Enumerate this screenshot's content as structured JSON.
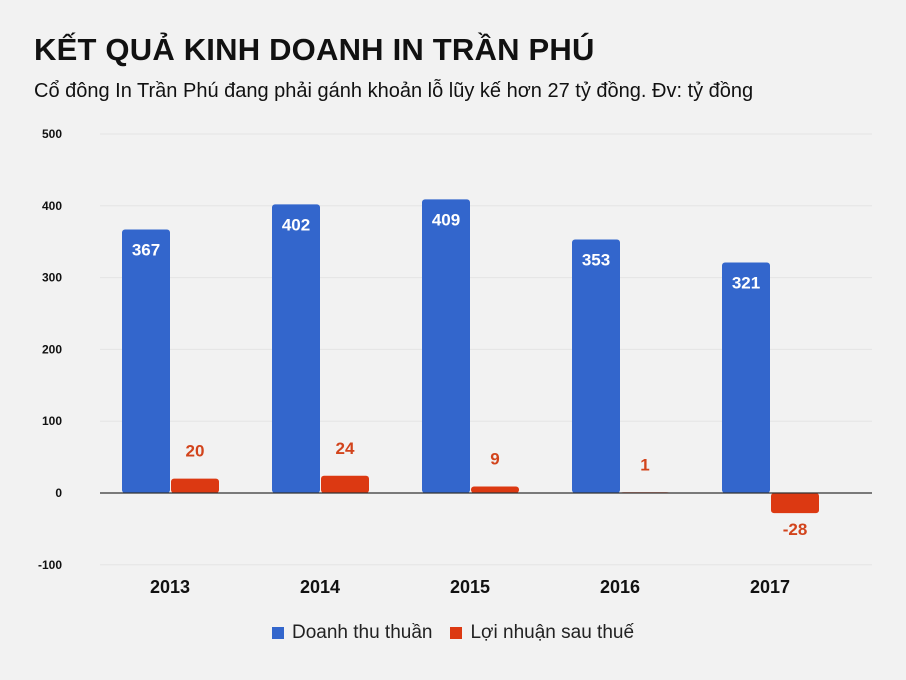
{
  "title": "KẾT QUẢ KINH DOANH IN TRẦN PHÚ",
  "subtitle": "Cổ đông In Trần Phú đang phải gánh khoản lỗ lũy kế hơn 27 tỷ đồng. Đv: tỷ đồng",
  "chart_data": {
    "type": "bar",
    "title": "KẾT QUẢ KINH DOANH IN TRẦN PHÚ",
    "categories": [
      "2013",
      "2014",
      "2015",
      "2016",
      "2017"
    ],
    "series": [
      {
        "name": "Doanh thu thuần",
        "values": [
          367,
          402,
          409,
          353,
          321
        ],
        "color": "#3366cc",
        "label_color": "#ffffff"
      },
      {
        "name": "Lợi nhuận sau thuế",
        "values": [
          20,
          24,
          9,
          1,
          -28
        ],
        "color": "#dc3912",
        "label_color": "#d2441c"
      }
    ],
    "yticks": [
      "500",
      "400",
      "300",
      "200",
      "100",
      "0",
      "-100"
    ],
    "ylim": [
      -100,
      500
    ],
    "xlabel": "",
    "ylabel": "",
    "grid": true,
    "legend": "bottom"
  }
}
